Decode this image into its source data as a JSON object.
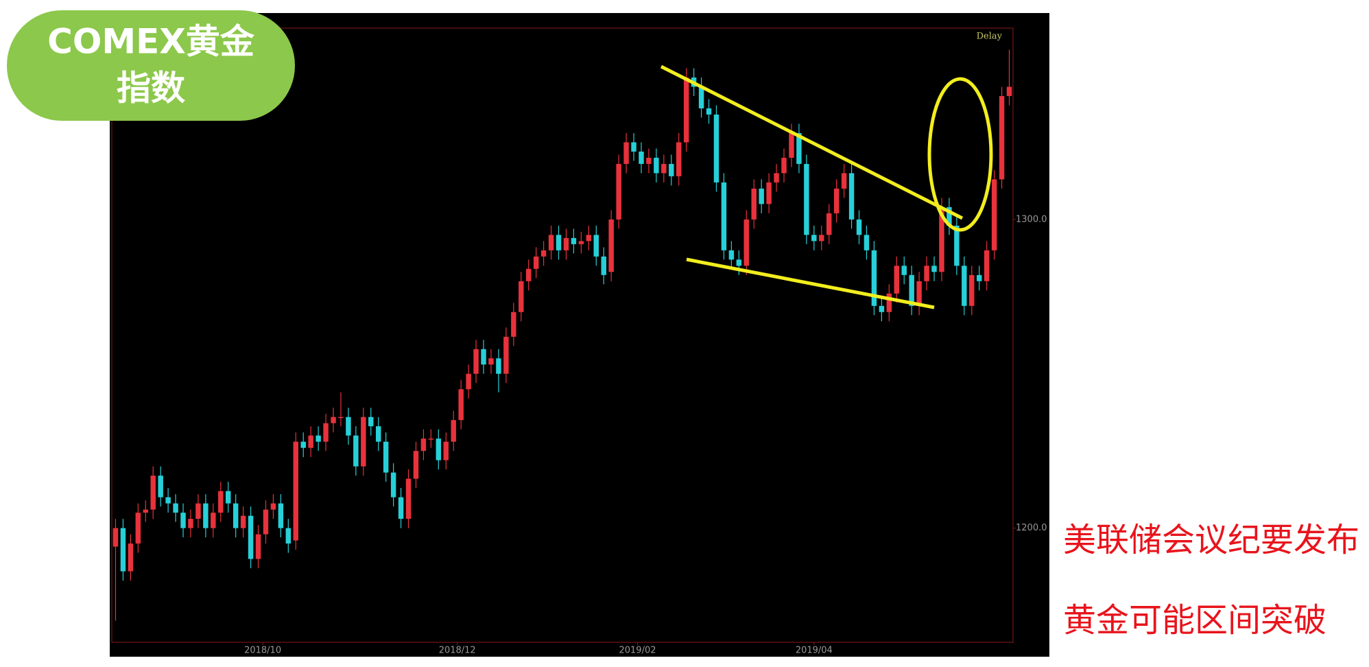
{
  "chart_data": {
    "type": "candlestick",
    "badge": [
      "COMEX黄金",
      "指数"
    ],
    "corner_label": "Delay",
    "annotations": [
      "美联储会议纪要发布",
      "黄金可能区间突破"
    ],
    "up_color": "#e8323c",
    "down_color": "#27d0d8",
    "ylim": [
      1163,
      1362
    ],
    "yticks": [
      {
        "value": 1200,
        "label": "1200.0"
      },
      {
        "value": 1300,
        "label": "1300.0"
      }
    ],
    "xlim": [
      -0.5,
      119.5
    ],
    "xticks": [
      {
        "value": 19.6,
        "label": "2018/10"
      },
      {
        "value": 45.5,
        "label": "2018/12"
      },
      {
        "value": 69.5,
        "label": "2019/02"
      },
      {
        "value": 93,
        "label": "2019/04"
      }
    ],
    "open": [
      1194,
      1200,
      1186,
      1195,
      1205,
      1206,
      1217,
      1210,
      1208,
      1205,
      1200,
      1203,
      1208,
      1200,
      1205,
      1212,
      1208,
      1200,
      1204,
      1190,
      1198,
      1206,
      1208,
      1200,
      1196,
      1228,
      1226,
      1230,
      1228,
      1234,
      1236,
      1236,
      1230,
      1220,
      1236,
      1233,
      1228,
      1218,
      1210,
      1203,
      1216,
      1225,
      1229,
      1229,
      1222,
      1228,
      1235,
      1245,
      1250,
      1258,
      1253,
      1255,
      1250,
      1262,
      1270,
      1280,
      1284,
      1288,
      1290,
      1295,
      1290,
      1294,
      1292,
      1293,
      1295,
      1288,
      1283,
      1300,
      1318,
      1325,
      1322,
      1318,
      1320,
      1315,
      1318,
      1314,
      1325,
      1346,
      1343,
      1336,
      1334,
      1312,
      1290,
      1287,
      1285,
      1300,
      1310,
      1305,
      1312,
      1315,
      1320,
      1328,
      1318,
      1295,
      1293,
      1295,
      1302,
      1310,
      1315,
      1300,
      1295,
      1290,
      1272,
      1270,
      1276,
      1285,
      1282,
      1272,
      1280,
      1285,
      1283,
      1304,
      1298,
      1285,
      1272,
      1282,
      1280,
      1290,
      1313,
      1340
    ],
    "high": [
      1203,
      1203,
      1198,
      1208,
      1209,
      1220,
      1220,
      1213,
      1211,
      1208,
      1206,
      1211,
      1211,
      1208,
      1215,
      1215,
      1211,
      1207,
      1207,
      1201,
      1209,
      1211,
      1211,
      1203,
      1231,
      1231,
      1233,
      1233,
      1237,
      1239,
      1244,
      1239,
      1233,
      1239,
      1239,
      1236,
      1231,
      1221,
      1213,
      1219,
      1228,
      1232,
      1232,
      1232,
      1231,
      1238,
      1248,
      1253,
      1261,
      1261,
      1258,
      1258,
      1265,
      1273,
      1283,
      1287,
      1291,
      1293,
      1298,
      1298,
      1297,
      1297,
      1296,
      1298,
      1298,
      1291,
      1303,
      1321,
      1328,
      1328,
      1325,
      1323,
      1323,
      1321,
      1321,
      1328,
      1349,
      1349,
      1346,
      1339,
      1337,
      1315,
      1293,
      1290,
      1303,
      1313,
      1313,
      1315,
      1318,
      1323,
      1331,
      1331,
      1321,
      1298,
      1298,
      1305,
      1313,
      1318,
      1318,
      1303,
      1298,
      1293,
      1275,
      1279,
      1288,
      1288,
      1285,
      1283,
      1288,
      1288,
      1307,
      1307,
      1301,
      1288,
      1285,
      1285,
      1293,
      1316,
      1343,
      1355
    ],
    "low": [
      1170,
      1183,
      1183,
      1192,
      1202,
      1203,
      1207,
      1205,
      1202,
      1197,
      1197,
      1200,
      1197,
      1197,
      1202,
      1205,
      1197,
      1197,
      1187,
      1187,
      1195,
      1203,
      1197,
      1192,
      1193,
      1223,
      1223,
      1225,
      1225,
      1231,
      1233,
      1227,
      1217,
      1217,
      1230,
      1225,
      1215,
      1207,
      1200,
      1200,
      1213,
      1222,
      1226,
      1219,
      1219,
      1225,
      1232,
      1242,
      1247,
      1250,
      1250,
      1244,
      1247,
      1259,
      1267,
      1277,
      1281,
      1285,
      1287,
      1287,
      1287,
      1289,
      1289,
      1290,
      1285,
      1279,
      1280,
      1297,
      1315,
      1319,
      1315,
      1315,
      1312,
      1312,
      1311,
      1311,
      1322,
      1340,
      1333,
      1331,
      1309,
      1287,
      1284,
      1282,
      1282,
      1297,
      1302,
      1302,
      1309,
      1312,
      1317,
      1315,
      1292,
      1290,
      1290,
      1292,
      1299,
      1307,
      1297,
      1292,
      1287,
      1269,
      1267,
      1267,
      1273,
      1279,
      1269,
      1269,
      1277,
      1280,
      1280,
      1295,
      1282,
      1269,
      1269,
      1277,
      1277,
      1287,
      1310,
      1337
    ],
    "close": [
      1200,
      1186,
      1195,
      1205,
      1206,
      1217,
      1210,
      1208,
      1205,
      1200,
      1203,
      1208,
      1200,
      1205,
      1212,
      1208,
      1200,
      1204,
      1190,
      1198,
      1206,
      1208,
      1200,
      1195,
      1228,
      1226,
      1230,
      1228,
      1234,
      1236,
      1236,
      1230,
      1220,
      1236,
      1233,
      1228,
      1218,
      1210,
      1203,
      1216,
      1225,
      1229,
      1229,
      1222,
      1228,
      1235,
      1245,
      1250,
      1258,
      1253,
      1255,
      1250,
      1262,
      1270,
      1280,
      1284,
      1288,
      1290,
      1295,
      1290,
      1294,
      1292,
      1293,
      1295,
      1288,
      1282,
      1300,
      1318,
      1325,
      1322,
      1318,
      1320,
      1315,
      1318,
      1314,
      1325,
      1346,
      1343,
      1336,
      1334,
      1312,
      1290,
      1287,
      1285,
      1300,
      1310,
      1305,
      1312,
      1315,
      1320,
      1328,
      1318,
      1295,
      1293,
      1295,
      1302,
      1310,
      1315,
      1300,
      1295,
      1290,
      1272,
      1270,
      1276,
      1285,
      1282,
      1272,
      1280,
      1285,
      1283,
      1304,
      1298,
      1285,
      1272,
      1282,
      1280,
      1290,
      1313,
      1340,
      1343
    ]
  }
}
